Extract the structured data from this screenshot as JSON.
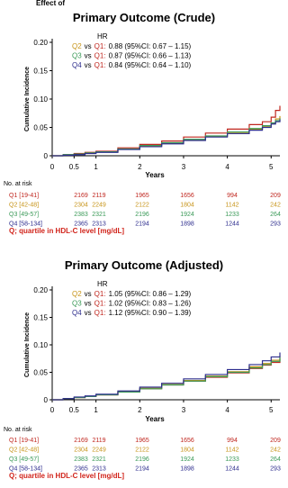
{
  "header_fragment": "Effect of",
  "colors": {
    "Q1": "#c0271f",
    "Q2": "#c79419",
    "Q3": "#3b9a58",
    "Q4": "#2e2e8e",
    "note": "#d1241b"
  },
  "chart_data": [
    {
      "type": "line",
      "title": "Primary Outcome (Crude)",
      "ylabel": "Cumulative Incidence",
      "xlabel": "Years",
      "ylim": [
        0,
        0.2
      ],
      "xlim": [
        0,
        5.2
      ],
      "yticks": [
        "0",
        "0.05",
        "0.10",
        "0.15",
        "0.20"
      ],
      "xticks": [
        "0",
        "0.5",
        "1",
        "2",
        "3",
        "4",
        "5"
      ],
      "hr_title": "HR",
      "hr_rows": [
        {
          "a": "Q2",
          "vs": "vs",
          "b": "Q1:",
          "text": "0.88 (95%CI: 0.67 – 1.15)"
        },
        {
          "a": "Q3",
          "vs": "vs",
          "b": "Q1:",
          "text": "0.87 (95%CI: 0.66 – 1.13)"
        },
        {
          "a": "Q4",
          "vs": "vs",
          "b": "Q1:",
          "text": "0.84 (95%CI: 0.64 – 1.10)"
        }
      ],
      "series": [
        {
          "name": "Q1",
          "x": [
            0,
            0.25,
            0.5,
            0.75,
            1,
            1.5,
            2,
            2.5,
            3,
            3.5,
            4,
            4.5,
            4.8,
            5.0,
            5.1,
            5.2
          ],
          "values": [
            0,
            0.002,
            0.004,
            0.006,
            0.008,
            0.014,
            0.02,
            0.026,
            0.033,
            0.04,
            0.047,
            0.055,
            0.06,
            0.068,
            0.08,
            0.088
          ]
        },
        {
          "name": "Q2",
          "x": [
            0,
            0.25,
            0.5,
            0.75,
            1,
            1.5,
            2,
            2.5,
            3,
            3.5,
            4,
            4.5,
            4.8,
            5.0,
            5.1,
            5.2
          ],
          "values": [
            0,
            0.001,
            0.003,
            0.005,
            0.007,
            0.012,
            0.017,
            0.022,
            0.028,
            0.034,
            0.04,
            0.047,
            0.052,
            0.057,
            0.065,
            0.07
          ]
        },
        {
          "name": "Q3",
          "x": [
            0,
            0.25,
            0.5,
            0.75,
            1,
            1.5,
            2,
            2.5,
            3,
            3.5,
            4,
            4.5,
            4.8,
            5.0,
            5.1,
            5.2
          ],
          "values": [
            0,
            0.002,
            0.003,
            0.005,
            0.007,
            0.012,
            0.018,
            0.023,
            0.029,
            0.035,
            0.042,
            0.048,
            0.053,
            0.058,
            0.062,
            0.066
          ]
        },
        {
          "name": "Q4",
          "x": [
            0,
            0.25,
            0.5,
            0.75,
            1,
            1.5,
            2,
            2.5,
            3,
            3.5,
            4,
            4.5,
            4.8,
            5.0,
            5.1,
            5.2
          ],
          "values": [
            0,
            0.001,
            0.002,
            0.004,
            0.006,
            0.011,
            0.016,
            0.021,
            0.027,
            0.033,
            0.039,
            0.045,
            0.05,
            0.056,
            0.06,
            0.064
          ]
        }
      ],
      "risk_title": "No. at risk",
      "risk_table": [
        {
          "label": "Q1 [19-41]",
          "counts": [
            "2169",
            "2119",
            "1965",
            "1656",
            "994",
            "209"
          ]
        },
        {
          "label": "Q2 [42-48]",
          "counts": [
            "2304",
            "2249",
            "2122",
            "1804",
            "1142",
            "242"
          ]
        },
        {
          "label": "Q3 [49-57]",
          "counts": [
            "2383",
            "2321",
            "2196",
            "1924",
            "1233",
            "264"
          ]
        },
        {
          "label": "Q4 [58-134]",
          "counts": [
            "2365",
            "2313",
            "2194",
            "1898",
            "1244",
            "293"
          ]
        }
      ],
      "note": "Q; quartile in HDL-C level [mg/dL]"
    },
    {
      "type": "line",
      "title": "Primary Outcome (Adjusted)",
      "ylabel": "Cumulative Incidence",
      "xlabel": "Years",
      "ylim": [
        0,
        0.2
      ],
      "xlim": [
        0,
        5.2
      ],
      "yticks": [
        "0",
        "0.05",
        "0.10",
        "0.15",
        "0.20"
      ],
      "xticks": [
        "0",
        "0.5",
        "1",
        "2",
        "3",
        "4",
        "5"
      ],
      "hr_title": "HR",
      "hr_rows": [
        {
          "a": "Q2",
          "vs": "vs",
          "b": "Q1:",
          "text": "1.05 (95%CI: 0.86 – 1.29)"
        },
        {
          "a": "Q3",
          "vs": "vs",
          "b": "Q1:",
          "text": "1.02 (95%CI: 0.83 – 1.26)"
        },
        {
          "a": "Q4",
          "vs": "vs",
          "b": "Q1:",
          "text": "1.12 (95%CI: 0.90 – 1.39)"
        }
      ],
      "series": [
        {
          "name": "Q1",
          "x": [
            0,
            0.25,
            0.5,
            0.75,
            1,
            1.5,
            2,
            2.5,
            3,
            3.5,
            4,
            4.5,
            4.8,
            5.0,
            5.2
          ],
          "values": [
            0,
            0.002,
            0.004,
            0.006,
            0.009,
            0.014,
            0.02,
            0.027,
            0.034,
            0.041,
            0.049,
            0.057,
            0.063,
            0.068,
            0.075
          ]
        },
        {
          "name": "Q2",
          "x": [
            0,
            0.25,
            0.5,
            0.75,
            1,
            1.5,
            2,
            2.5,
            3,
            3.5,
            4,
            4.5,
            4.8,
            5.0,
            5.2
          ],
          "values": [
            0,
            0.002,
            0.004,
            0.006,
            0.009,
            0.015,
            0.021,
            0.028,
            0.035,
            0.043,
            0.051,
            0.06,
            0.066,
            0.072,
            0.08
          ]
        },
        {
          "name": "Q3",
          "x": [
            0,
            0.25,
            0.5,
            0.75,
            1,
            1.5,
            2,
            2.5,
            3,
            3.5,
            4,
            4.5,
            4.8,
            5.0,
            5.2
          ],
          "values": [
            0,
            0.002,
            0.004,
            0.006,
            0.009,
            0.014,
            0.02,
            0.027,
            0.034,
            0.042,
            0.05,
            0.058,
            0.064,
            0.07,
            0.077
          ]
        },
        {
          "name": "Q4",
          "x": [
            0,
            0.25,
            0.5,
            0.75,
            1,
            1.5,
            2,
            2.5,
            3,
            3.5,
            4,
            4.5,
            4.8,
            5.0,
            5.2
          ],
          "values": [
            0,
            0.002,
            0.005,
            0.007,
            0.01,
            0.016,
            0.023,
            0.03,
            0.038,
            0.046,
            0.055,
            0.064,
            0.071,
            0.078,
            0.086
          ]
        }
      ],
      "risk_title": "No. at risk",
      "risk_table": [
        {
          "label": "Q1 [19-41]",
          "counts": [
            "2169",
            "2119",
            "1965",
            "1656",
            "994",
            "209"
          ]
        },
        {
          "label": "Q2 [42-48]",
          "counts": [
            "2304",
            "2249",
            "2122",
            "1804",
            "1142",
            "242"
          ]
        },
        {
          "label": "Q3 [49-57]",
          "counts": [
            "2383",
            "2321",
            "2196",
            "1924",
            "1233",
            "264"
          ]
        },
        {
          "label": "Q4 [58-134]",
          "counts": [
            "2365",
            "2313",
            "2194",
            "1898",
            "1244",
            "293"
          ]
        }
      ],
      "note": "Q; quartile in HDL-C level [mg/dL]"
    }
  ]
}
